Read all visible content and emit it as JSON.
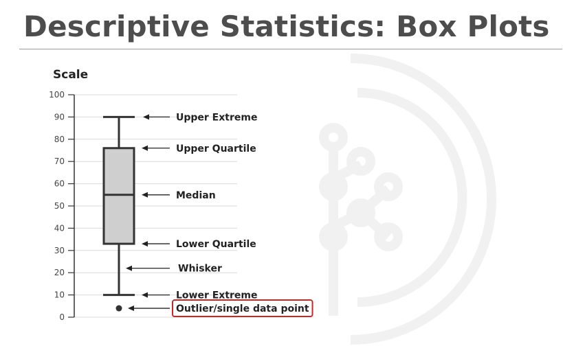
{
  "slide": {
    "title": "Descriptive Statistics: Box Plots"
  },
  "chart_data": {
    "type": "box",
    "ylabel": "Scale",
    "ylim": [
      0,
      100
    ],
    "yticks": [
      0,
      10,
      20,
      30,
      40,
      50,
      60,
      70,
      80,
      90,
      100
    ],
    "grid": true,
    "box": {
      "lower_extreme": 10,
      "lower_quartile": 33,
      "median": 55,
      "upper_quartile": 76,
      "upper_extreme": 90,
      "outliers": [
        4
      ]
    },
    "annotations": [
      {
        "key": "upper-extreme",
        "text": "Upper Extreme",
        "value": 90
      },
      {
        "key": "upper-quartile",
        "text": "Upper Quartile",
        "value": 76
      },
      {
        "key": "median",
        "text": "Median",
        "value": 55
      },
      {
        "key": "lower-quartile",
        "text": "Lower Quartile",
        "value": 33
      },
      {
        "key": "whisker",
        "text": "Whisker",
        "value": 22
      },
      {
        "key": "lower-extreme",
        "text": "Lower Extreme",
        "value": 10
      },
      {
        "key": "outlier",
        "text": "Outlier/single data point",
        "value": 4,
        "highlighted": true
      }
    ],
    "colors": {
      "box_fill": "#cfcfcf",
      "stroke": "#333333",
      "highlight": "#c62828",
      "grid": "#d9d9d9"
    }
  }
}
